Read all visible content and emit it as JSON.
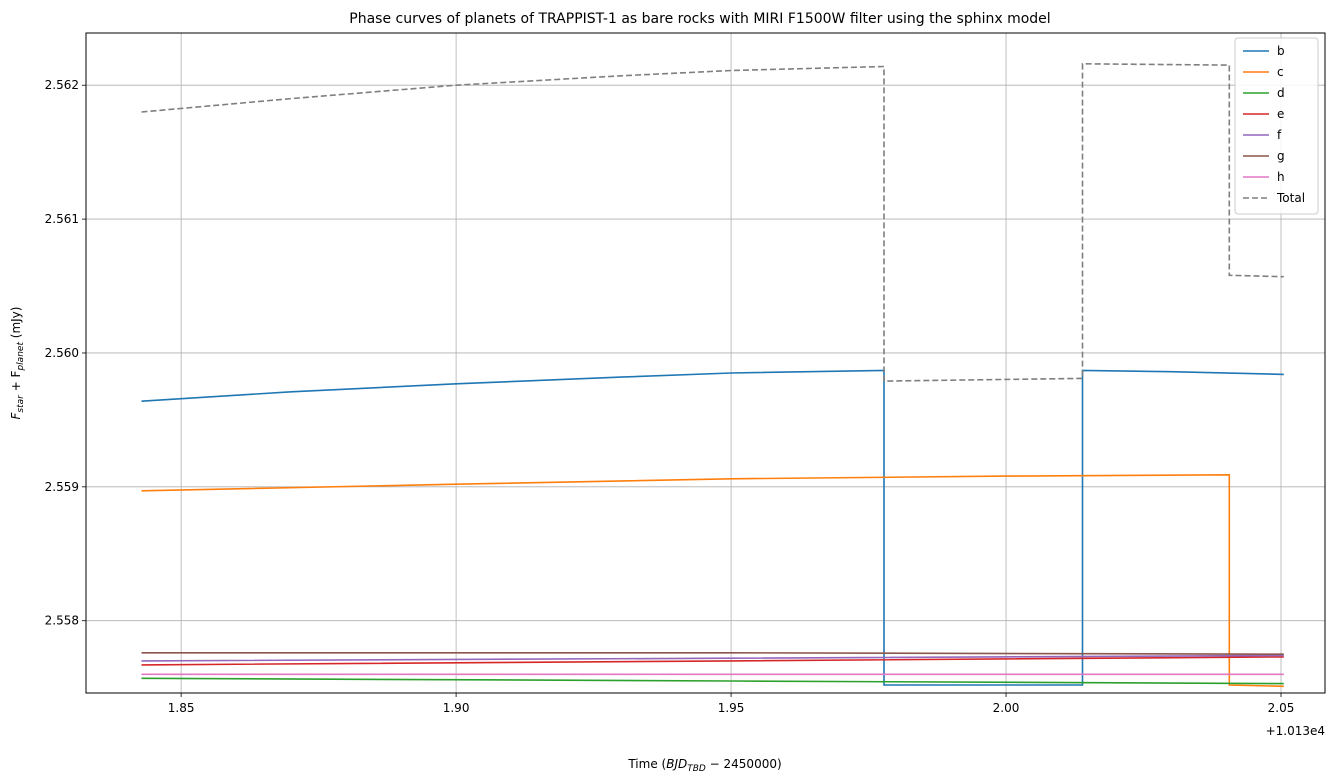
{
  "chart_data": {
    "type": "line",
    "title": "Phase curves of planets of TRAPPIST-1 as bare rocks with MIRI F1500W filter using the sphinx model",
    "xlabel_prefix": "Time (",
    "xlabel_math": "BJD",
    "xlabel_sub": "TBD",
    "xlabel_suffix": " − 2450000)",
    "ylabel_parts": [
      "F",
      "star",
      " + F",
      "planet",
      " (mJy)"
    ],
    "x_offset_label": "+1.013e4",
    "xlim": [
      1.8327,
      2.058
    ],
    "ylim": [
      2.55746,
      2.56239
    ],
    "xticks": [
      1.85,
      1.9,
      1.95,
      2.0,
      2.05
    ],
    "xtick_labels": [
      "1.85",
      "1.90",
      "1.95",
      "2.00",
      "2.05"
    ],
    "yticks": [
      2.558,
      2.559,
      2.56,
      2.561,
      2.562
    ],
    "ytick_labels": [
      "2.558",
      "2.559",
      "2.560",
      "2.561",
      "2.562"
    ],
    "grid": true,
    "legend_position": "top-right",
    "series": [
      {
        "name": "b",
        "color": "#1f77b4",
        "dash": false,
        "points": [
          [
            1.8428,
            2.55964
          ],
          [
            1.87,
            2.55971
          ],
          [
            1.9,
            2.55977
          ],
          [
            1.93,
            2.55982
          ],
          [
            1.95,
            2.55985
          ],
          [
            1.9778,
            2.55987
          ],
          [
            1.9778,
            2.55752
          ],
          [
            2.0139,
            2.55752
          ],
          [
            2.0139,
            2.55987
          ],
          [
            2.03,
            2.55986
          ],
          [
            2.0505,
            2.55984
          ]
        ]
      },
      {
        "name": "c",
        "color": "#ff7f0e",
        "dash": false,
        "points": [
          [
            1.8428,
            2.55897
          ],
          [
            1.9,
            2.55902
          ],
          [
            1.95,
            2.55906
          ],
          [
            2.0,
            2.55908
          ],
          [
            2.0406,
            2.55909
          ],
          [
            2.0406,
            2.55752
          ],
          [
            2.0505,
            2.55751
          ]
        ]
      },
      {
        "name": "d",
        "color": "#2ca02c",
        "dash": false,
        "points": [
          [
            1.8428,
            2.55757
          ],
          [
            1.95,
            2.55755
          ],
          [
            2.0505,
            2.55753
          ]
        ]
      },
      {
        "name": "e",
        "color": "#d62728",
        "dash": false,
        "points": [
          [
            1.8428,
            2.55767
          ],
          [
            1.95,
            2.5577
          ],
          [
            2.0505,
            2.55773
          ]
        ]
      },
      {
        "name": "f",
        "color": "#9467bd",
        "dash": false,
        "points": [
          [
            1.8428,
            2.5577
          ],
          [
            1.95,
            2.55772
          ],
          [
            2.0505,
            2.55774
          ]
        ]
      },
      {
        "name": "g",
        "color": "#8c564b",
        "dash": false,
        "points": [
          [
            1.8428,
            2.55776
          ],
          [
            1.95,
            2.55776
          ],
          [
            2.0505,
            2.55775
          ]
        ]
      },
      {
        "name": "h",
        "color": "#e377c2",
        "dash": false,
        "points": [
          [
            1.8428,
            2.5576
          ],
          [
            1.95,
            2.5576
          ],
          [
            2.0505,
            2.5576
          ]
        ]
      },
      {
        "name": "Total",
        "color": "#7f7f7f",
        "dash": true,
        "points": [
          [
            1.8428,
            2.5618
          ],
          [
            1.87,
            2.5619
          ],
          [
            1.9,
            2.562
          ],
          [
            1.93,
            2.56207
          ],
          [
            1.95,
            2.56211
          ],
          [
            1.9778,
            2.56214
          ],
          [
            1.9778,
            2.55979
          ],
          [
            2.0139,
            2.55981
          ],
          [
            2.0139,
            2.56216
          ],
          [
            2.0406,
            2.56215
          ],
          [
            2.0406,
            2.56058
          ],
          [
            2.0505,
            2.56057
          ]
        ]
      }
    ]
  }
}
